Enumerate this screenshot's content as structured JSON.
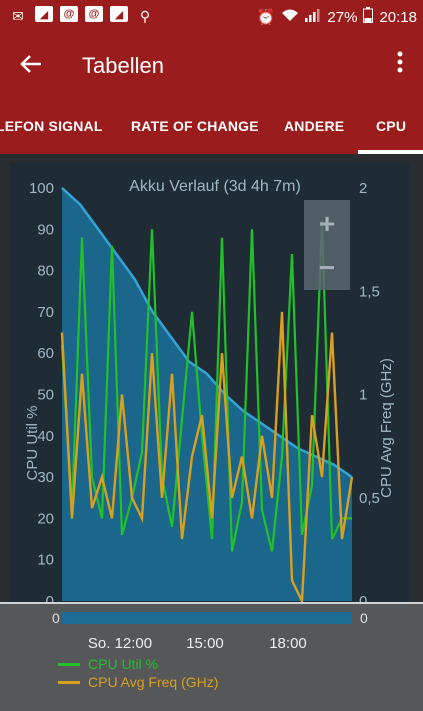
{
  "status_bar": {
    "icons": [
      "mail-icon",
      "signal-square-icon",
      "at-icon",
      "at-icon",
      "signal-square-icon",
      "location-icon"
    ],
    "battery": "27%",
    "time": "20:18"
  },
  "app_bar": {
    "title": "Tabellen"
  },
  "tabs": [
    {
      "label": "LEFON SIGNAL"
    },
    {
      "label": "RATE OF CHANGE"
    },
    {
      "label": "ANDERE"
    },
    {
      "label": "CPU"
    }
  ],
  "colors": {
    "accent": "#9b1c1c",
    "battery_line": "#34a3d6",
    "battery_fill": "#1b6d95",
    "cpu_util": "#22c12a",
    "cpu_freq": "#d8a020"
  },
  "chart_data": {
    "type": "line",
    "title": "Akku Verlauf (3d 4h 7m)",
    "ylabel": "CPU Util %",
    "y2label": "CPU Avg Freq (GHz)",
    "ylim": [
      0,
      100
    ],
    "y2lim": [
      0,
      2
    ],
    "y_ticks": [
      "0",
      "10",
      "20",
      "30",
      "40",
      "50",
      "60",
      "70",
      "80",
      "90",
      "100"
    ],
    "y2_ticks": [
      "0",
      "0,5",
      "1",
      "1,5",
      "2"
    ],
    "x_ticks": [
      "So. 12:00",
      "15:00",
      "18:00"
    ],
    "zoom_in": "+",
    "zoom_out": "−",
    "series": [
      {
        "name": "CPU Util %",
        "values": [
          62,
          22,
          88,
          30,
          20,
          86,
          16,
          25,
          36,
          90,
          30,
          18,
          44,
          70,
          40,
          15,
          88,
          12,
          24,
          90,
          22,
          12,
          35,
          84,
          16,
          28,
          92,
          15,
          20,
          20
        ]
      },
      {
        "name": "CPU Avg Freq (GHz)",
        "values": [
          1.3,
          0.4,
          1.1,
          0.45,
          0.6,
          0.4,
          1.0,
          0.5,
          0.4,
          1.2,
          0.5,
          1.1,
          0.3,
          0.7,
          0.9,
          0.4,
          1.2,
          0.5,
          0.7,
          0.4,
          0.8,
          0.5,
          1.4,
          0.1,
          0.0,
          0.9,
          0.6,
          1.3,
          0.3,
          0.6
        ]
      },
      {
        "name": "Akku",
        "values": [
          100,
          96,
          90,
          84,
          78,
          70,
          64,
          58,
          55,
          50,
          46,
          43,
          40,
          37,
          35,
          33,
          30
        ]
      }
    ]
  },
  "navigator": {
    "left_label": "0",
    "right_label": "0"
  }
}
